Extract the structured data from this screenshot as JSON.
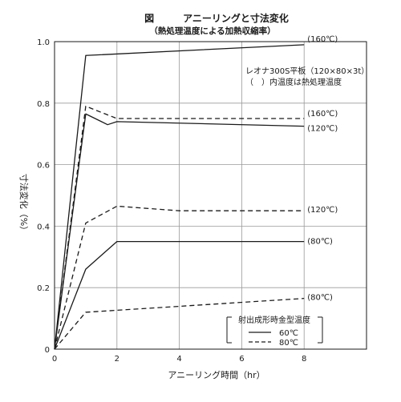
{
  "chart_data": {
    "type": "line",
    "title": "図　　　アニーリングと寸法変化",
    "subtitle": "（熱処理温度による加熱収縮率）",
    "xlabel": "アニーリング時間（hr）",
    "ylabel": "寸法変化（%）",
    "xlim": [
      0,
      10
    ],
    "ylim": [
      0,
      1.0
    ],
    "x_ticks": [
      "0",
      "2",
      "4",
      "6",
      "8"
    ],
    "y_ticks": [
      "0",
      "0.2",
      "0.4",
      "0.6",
      "0.8",
      "1.0"
    ],
    "grid": true,
    "annotation": [
      "レオナ300S平板（120×80×3t）",
      "（　）内温度は熱処理温度"
    ],
    "legend": {
      "title": "射出成形時金型温度",
      "placement": "bottom-right",
      "entries": [
        {
          "label": "60℃",
          "style": "solid"
        },
        {
          "label": "80℃",
          "style": "dashed"
        }
      ]
    },
    "series": [
      {
        "label": "(160℃)",
        "mold": "60℃",
        "style": "solid",
        "x": [
          0,
          1,
          8
        ],
        "y": [
          0,
          0.955,
          0.99
        ]
      },
      {
        "label": "(160℃)",
        "mold": "80℃",
        "style": "dashed",
        "x": [
          0,
          1,
          2,
          8
        ],
        "y": [
          0,
          0.79,
          0.75,
          0.75
        ]
      },
      {
        "label": "(120℃)",
        "mold": "60℃",
        "style": "solid",
        "x": [
          0,
          1,
          1.7,
          2,
          8
        ],
        "y": [
          0,
          0.765,
          0.73,
          0.74,
          0.725
        ]
      },
      {
        "label": "(120℃)",
        "mold": "80℃",
        "style": "dashed",
        "x": [
          0,
          1,
          2,
          4,
          8
        ],
        "y": [
          0,
          0.41,
          0.465,
          0.45,
          0.45
        ]
      },
      {
        "label": "(80℃)",
        "mold": "60℃",
        "style": "solid",
        "x": [
          0,
          1,
          2,
          8
        ],
        "y": [
          0,
          0.26,
          0.35,
          0.35
        ]
      },
      {
        "label": "(80℃)",
        "mold": "80℃",
        "style": "dashed",
        "x": [
          0,
          1,
          8
        ],
        "y": [
          0,
          0.12,
          0.165
        ]
      }
    ]
  }
}
